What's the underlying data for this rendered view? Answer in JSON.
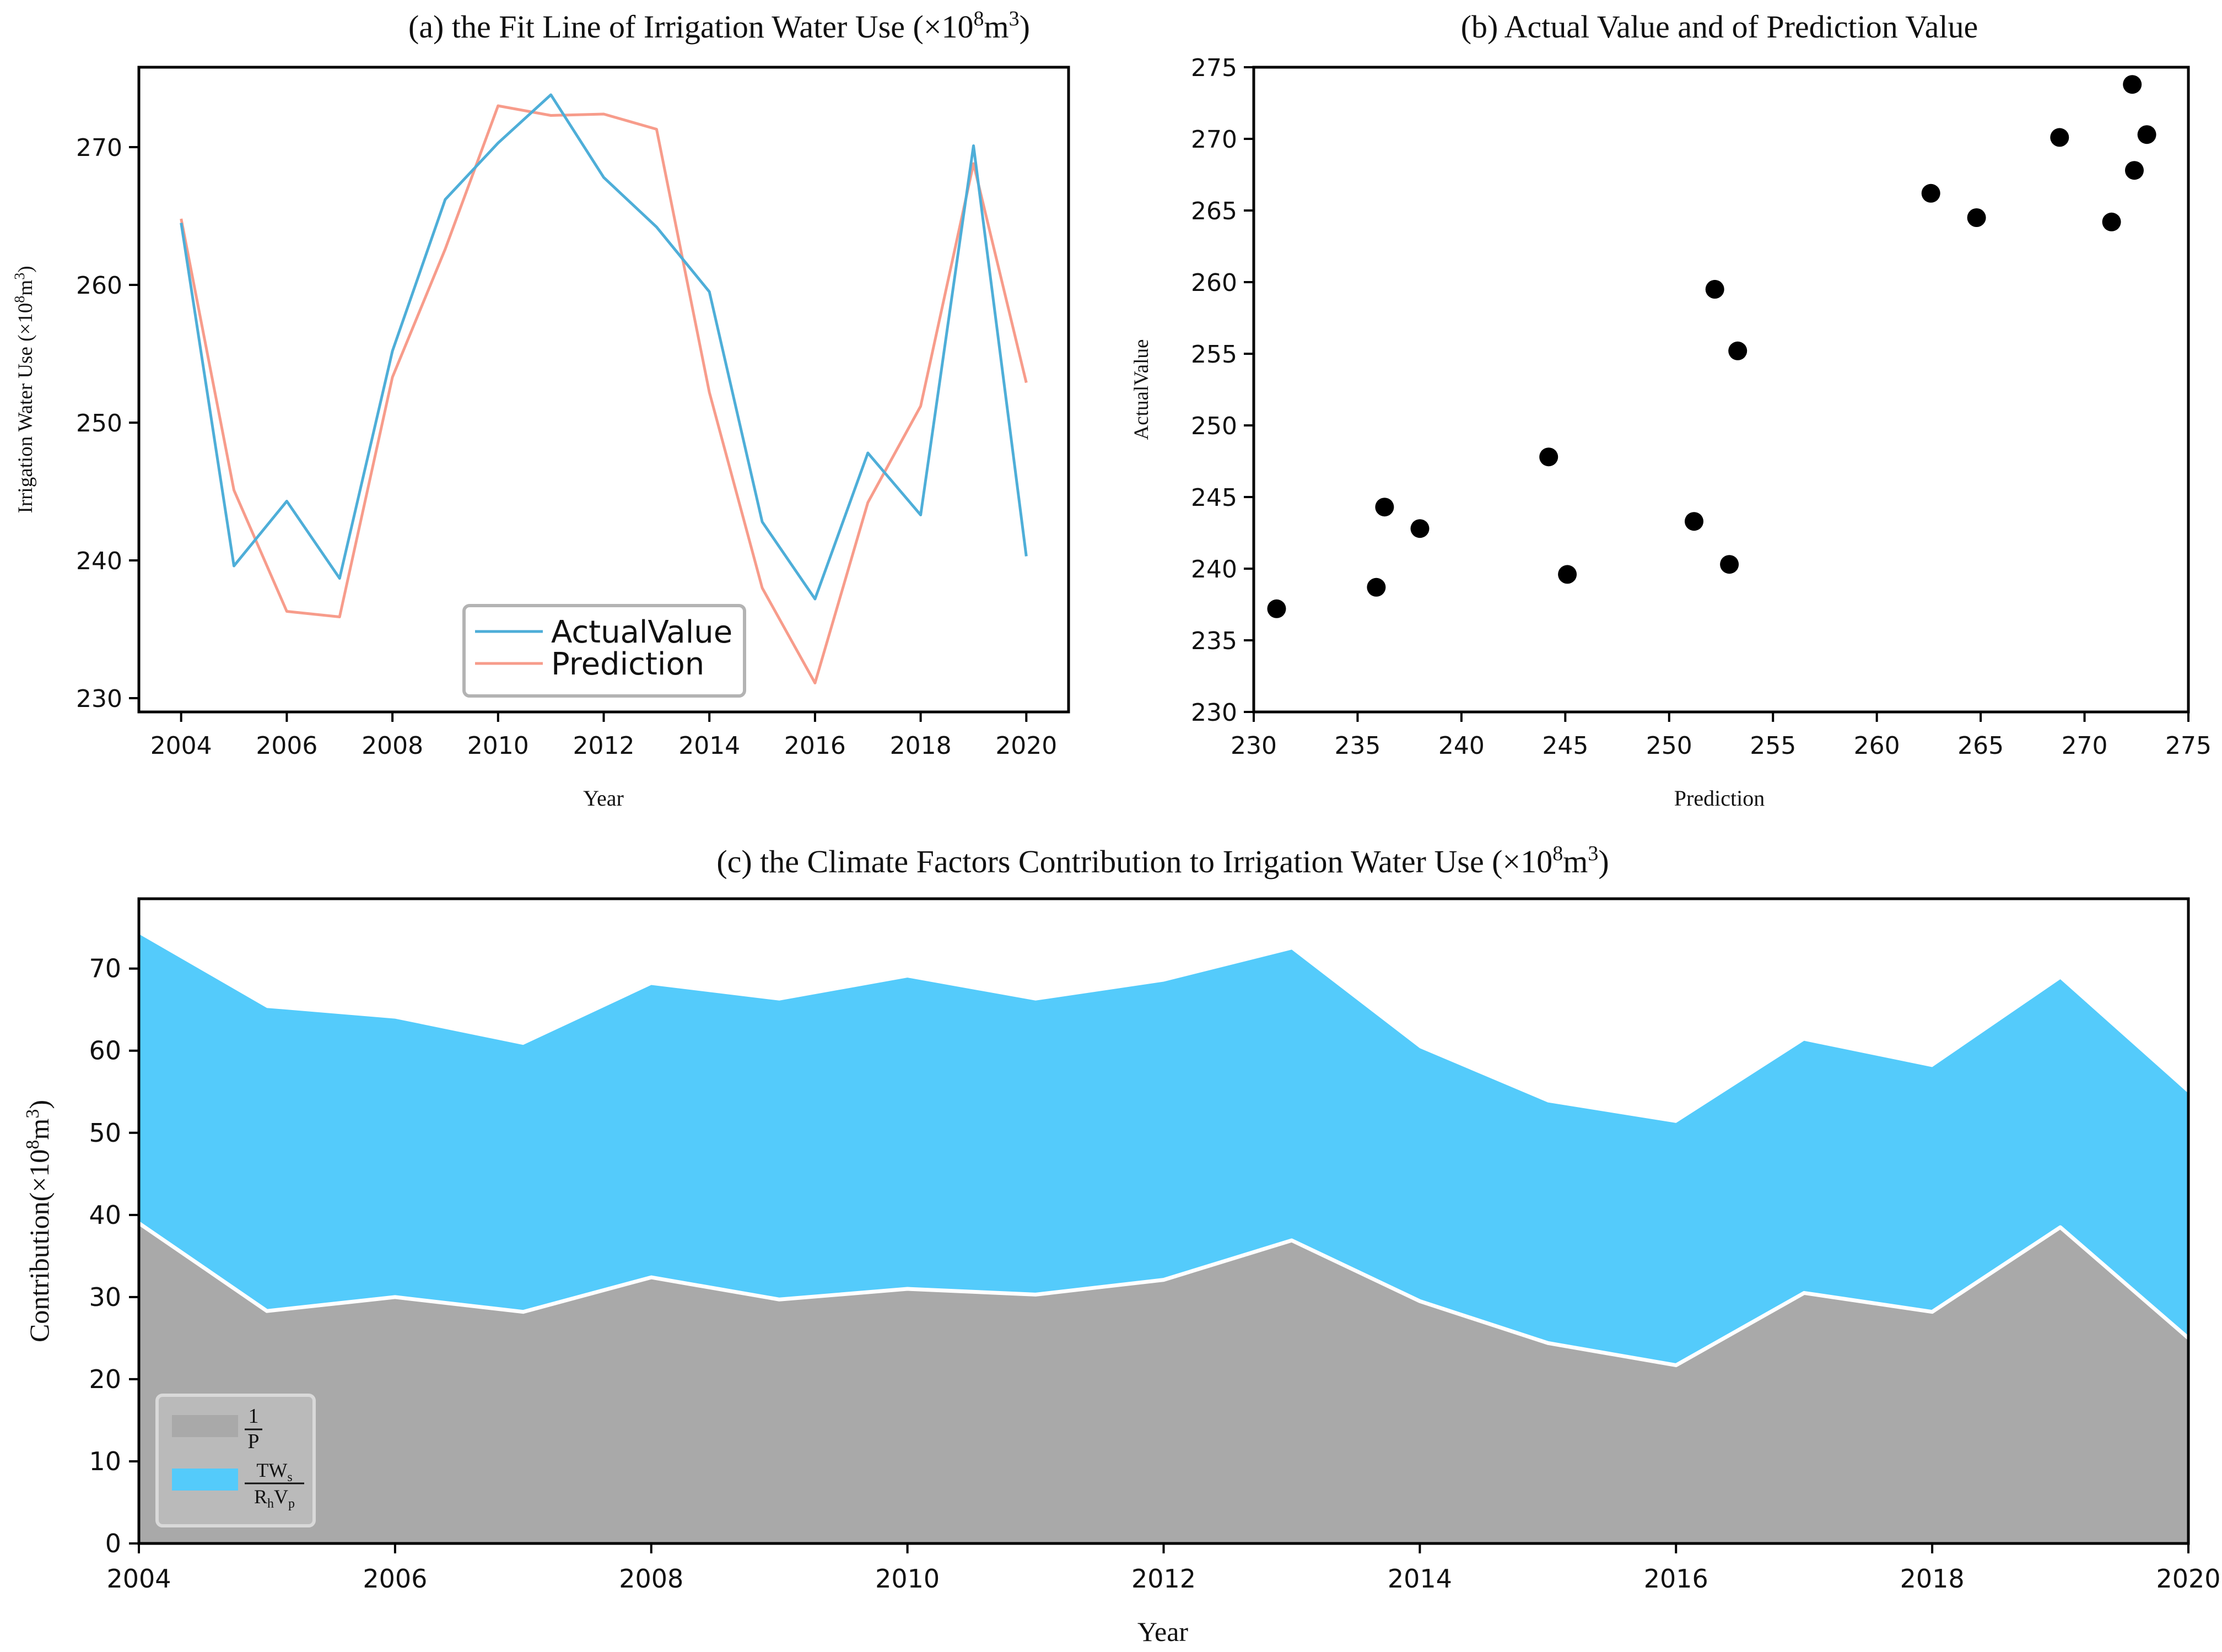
{
  "colors": {
    "actual": "#4eaed8",
    "prediction": "#f79c8b",
    "scatter": "#000000",
    "area_gray": "#a9a9a9",
    "area_blue": "#54cbfb",
    "legend_frame": "#b3b3b3"
  },
  "chart_data": [
    {
      "id": "a",
      "type": "line",
      "title": "(a) the Fit Line of Irrigation Water Use (×10",
      "title_exp": "8",
      "title_unit": "m",
      "title_unit_exp": "3",
      "title_close": ")",
      "xlabel": "Year",
      "ylabel": "Irrigation Water Use (×10",
      "ylabel_exp": "8",
      "ylabel_unit": "m",
      "ylabel_unit_exp": "3",
      "ylabel_close": ")",
      "x": [
        2004,
        2005,
        2006,
        2007,
        2008,
        2009,
        2010,
        2011,
        2012,
        2013,
        2014,
        2015,
        2016,
        2017,
        2018,
        2019,
        2020
      ],
      "xlim": [
        2003.2,
        2020.8
      ],
      "ylim": [
        229.0,
        275.8
      ],
      "xticks": [
        "2004",
        "2006",
        "2008",
        "2010",
        "2012",
        "2014",
        "2016",
        "2018",
        "2020"
      ],
      "yticks": [
        "230",
        "240",
        "250",
        "260",
        "270"
      ],
      "series": [
        {
          "name": "ActualValue",
          "values": [
            264.5,
            239.6,
            244.3,
            238.7,
            255.2,
            266.2,
            270.3,
            273.8,
            267.8,
            264.2,
            259.5,
            242.8,
            237.2,
            247.8,
            243.3,
            270.1,
            240.3
          ]
        },
        {
          "name": "Prediction",
          "values": [
            264.8,
            245.1,
            236.3,
            235.9,
            253.3,
            262.6,
            273.0,
            272.3,
            272.4,
            271.3,
            252.2,
            238.0,
            231.1,
            244.2,
            251.2,
            268.8,
            252.9
          ]
        }
      ],
      "legend_position": "lower-center"
    },
    {
      "id": "b",
      "type": "scatter",
      "title": "(b) Actual Value and of Prediction Value",
      "xlabel": "Prediction",
      "ylabel": "ActualValue",
      "xlim": [
        230,
        275
      ],
      "ylim": [
        230,
        275
      ],
      "xticks": [
        "230",
        "235",
        "240",
        "245",
        "250",
        "255",
        "260",
        "265",
        "270",
        "275"
      ],
      "yticks": [
        "230",
        "235",
        "240",
        "245",
        "250",
        "255",
        "260",
        "265",
        "270",
        "275"
      ],
      "points": [
        [
          264.8,
          264.5
        ],
        [
          245.1,
          239.6
        ],
        [
          236.3,
          244.3
        ],
        [
          235.9,
          238.7
        ],
        [
          253.3,
          255.2
        ],
        [
          262.6,
          266.2
        ],
        [
          273.0,
          270.3
        ],
        [
          272.3,
          273.8
        ],
        [
          272.4,
          267.8
        ],
        [
          271.3,
          264.2
        ],
        [
          252.2,
          259.5
        ],
        [
          238.0,
          242.8
        ],
        [
          231.1,
          237.2
        ],
        [
          244.2,
          247.8
        ],
        [
          251.2,
          243.3
        ],
        [
          268.8,
          270.1
        ],
        [
          252.9,
          240.3
        ]
      ]
    },
    {
      "id": "c",
      "type": "area",
      "title": "(c) the Climate Factors Contribution to Irrigation Water Use (×10",
      "title_exp": "8",
      "title_unit": "m",
      "title_unit_exp": "3",
      "title_close": ")",
      "xlabel": "Year",
      "ylabel": "Contribution(×10",
      "ylabel_exp": "8",
      "ylabel_unit": "m",
      "ylabel_unit_exp": "3",
      "ylabel_close": ")",
      "x": [
        2004,
        2005,
        2006,
        2007,
        2008,
        2009,
        2010,
        2011,
        2012,
        2013,
        2014,
        2015,
        2016,
        2017,
        2018,
        2019,
        2020
      ],
      "xlim": [
        2004,
        2020
      ],
      "ylim": [
        0,
        78.5
      ],
      "xticks": [
        "2004",
        "2006",
        "2008",
        "2010",
        "2012",
        "2014",
        "2016",
        "2018",
        "2020"
      ],
      "yticks": [
        "0",
        "10",
        "20",
        "30",
        "40",
        "50",
        "60",
        "70"
      ],
      "stacked": true,
      "series": [
        {
          "name": "1/P",
          "values": [
            39.0,
            28.3,
            30.0,
            28.2,
            32.4,
            29.7,
            31.0,
            30.3,
            32.1,
            36.9,
            29.5,
            24.4,
            21.7,
            30.5,
            28.2,
            38.5,
            25.0
          ]
        },
        {
          "name": "TWs/(RhVp)",
          "values": [
            35.2,
            36.9,
            33.9,
            32.5,
            35.6,
            36.4,
            37.9,
            35.8,
            36.3,
            35.4,
            30.8,
            29.3,
            29.5,
            30.7,
            29.8,
            30.2,
            29.8
          ]
        }
      ],
      "totals": [
        74.2,
        65.2,
        63.9,
        60.7,
        68.0,
        66.1,
        68.9,
        66.1,
        68.4,
        72.3,
        60.3,
        53.7,
        51.2,
        61.2,
        58.0,
        68.7,
        54.8
      ],
      "legend_position": "lower-left",
      "legend_entries": [
        {
          "numerator": "1",
          "denominator": "P"
        },
        {
          "numerator": "TW",
          "numerator_sub": "s",
          "denominator": "R",
          "denominator_sub1": "h",
          "denominator_mid": "V",
          "denominator_sub2": "p"
        }
      ]
    }
  ]
}
